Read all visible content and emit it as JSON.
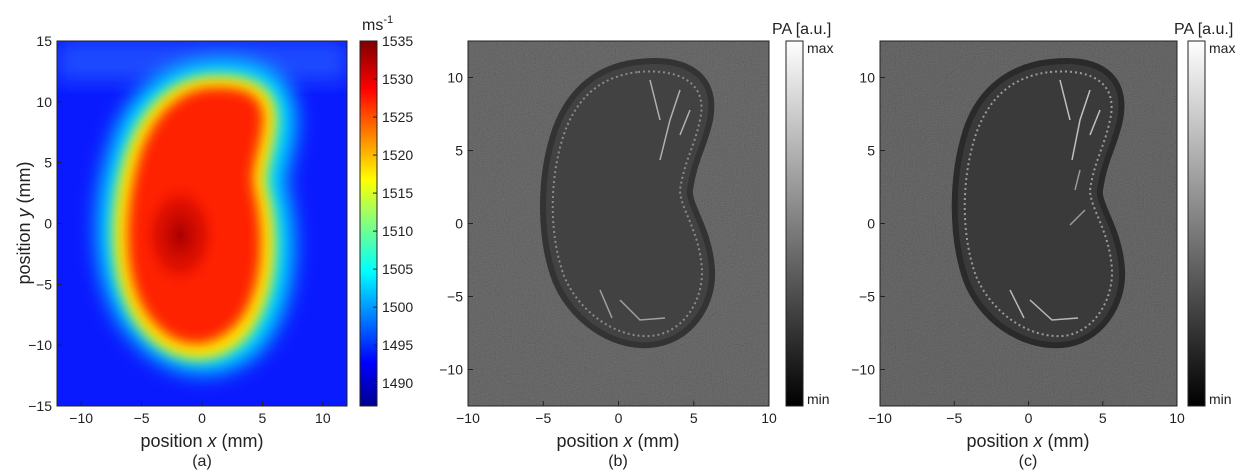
{
  "chart_data": [
    {
      "type": "heatmap",
      "caption": "(a)",
      "xlabel": "position x (mm)",
      "ylabel": "position y (mm)",
      "xlim": [
        -12,
        12
      ],
      "ylim": [
        -15,
        15
      ],
      "xticks": [
        "-10",
        "-5",
        "0",
        "5",
        "10"
      ],
      "xtick_values": [
        -10,
        -5,
        0,
        5,
        10
      ],
      "yticks": [
        "15",
        "10",
        "5",
        "0",
        "-5",
        "-10",
        "-15"
      ],
      "ytick_values": [
        15,
        10,
        5,
        0,
        -5,
        -10,
        -15
      ],
      "colorbar": {
        "unit": "ms",
        "unit_sup": "-1",
        "min": 1487,
        "max": 1535,
        "ticks": [
          "1535",
          "1530",
          "1525",
          "1520",
          "1515",
          "1510",
          "1505",
          "1500",
          "1495",
          "1490"
        ],
        "tick_values": [
          1535,
          1530,
          1525,
          1520,
          1515,
          1510,
          1505,
          1500,
          1495,
          1490
        ],
        "colormap": "jet"
      },
      "background_value": 1490,
      "region_value": 1526,
      "core_value": 1532
    },
    {
      "type": "heatmap",
      "caption": "(b)",
      "xlabel": "position x (mm)",
      "ylabel": "",
      "xlim": [
        -10,
        10
      ],
      "ylim": [
        -12.5,
        12.5
      ],
      "xticks": [
        "-10",
        "-5",
        "0",
        "5",
        "10"
      ],
      "xtick_values": [
        -10,
        -5,
        0,
        5,
        10
      ],
      "yticks": [
        "10",
        "5",
        "0",
        "-5",
        "-10"
      ],
      "ytick_values": [
        10,
        5,
        0,
        -5,
        -10
      ],
      "colorbar": {
        "title": "PA [a.u.]",
        "max_label": "max",
        "min_label": "min",
        "colormap": "gray"
      }
    },
    {
      "type": "heatmap",
      "caption": "(c)",
      "xlabel": "position x (mm)",
      "ylabel": "",
      "xlim": [
        -10,
        10
      ],
      "ylim": [
        -12.5,
        12.5
      ],
      "xticks": [
        "-10",
        "-5",
        "0",
        "5",
        "10"
      ],
      "xtick_values": [
        -10,
        -5,
        0,
        5,
        10
      ],
      "yticks": [
        "10",
        "5",
        "0",
        "-5",
        "-10"
      ],
      "ytick_values": [
        10,
        5,
        0,
        -5,
        -10
      ],
      "colorbar": {
        "title": "PA [a.u.]",
        "max_label": "max",
        "min_label": "min",
        "colormap": "gray"
      }
    }
  ]
}
